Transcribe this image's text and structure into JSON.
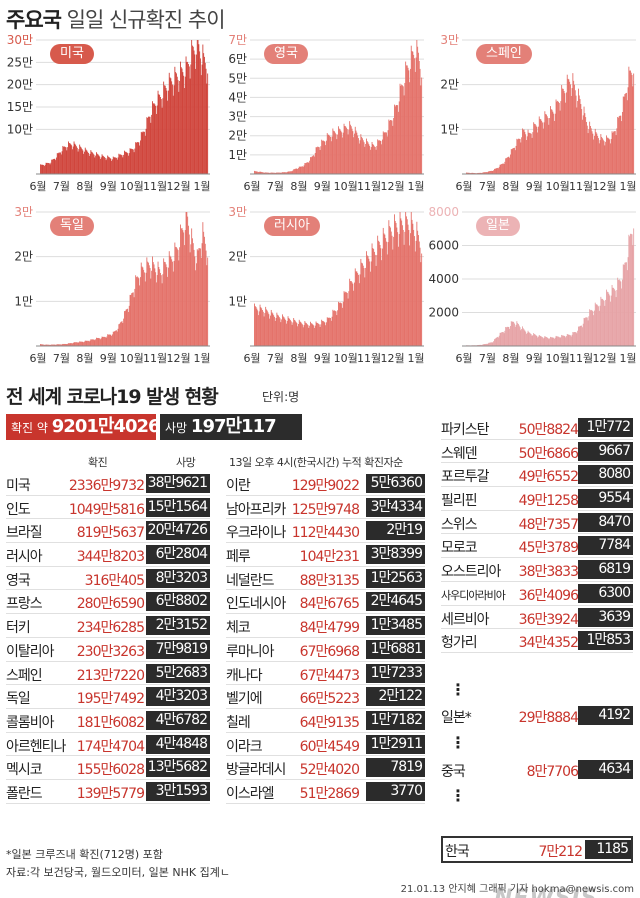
{
  "header": {
    "title_bold": "주요국",
    "title_rest": "일일 신규확진 추이"
  },
  "charts": [
    {
      "name": "미국",
      "color": "#d0453c",
      "label_bg": "#d75a4c",
      "ymax": 300000,
      "ticks": [
        [
          "30만",
          300000
        ],
        [
          "25만",
          250000
        ],
        [
          "20만",
          200000
        ],
        [
          "15만",
          150000
        ],
        [
          "10만",
          100000
        ]
      ],
      "months": [
        "6월",
        "7월",
        "8월",
        "9월",
        "10월",
        "11월",
        "12월",
        "1월"
      ],
      "series": [
        20000,
        23000,
        28000,
        40000,
        55000,
        66000,
        70000,
        64000,
        58000,
        52000,
        48000,
        44000,
        40000,
        38000,
        36000,
        42000,
        48000,
        52000,
        62000,
        80000,
        105000,
        140000,
        165000,
        180000,
        200000,
        215000,
        225000,
        235000,
        245000,
        280000,
        300000,
        270000,
        250000
      ]
    },
    {
      "name": "영국",
      "color": "#e4726a",
      "label_bg": "#e38078",
      "ymax": 70000,
      "ticks": [
        [
          "7만",
          70000
        ],
        [
          "6만",
          60000
        ],
        [
          "5만",
          50000
        ],
        [
          "4만",
          40000
        ],
        [
          "3만",
          30000
        ],
        [
          "2만",
          20000
        ],
        [
          "1만",
          10000
        ]
      ],
      "months": [
        "6월",
        "7월",
        "8월",
        "9월",
        "10월",
        "11월",
        "12월",
        "1월"
      ],
      "series": [
        1500,
        1200,
        800,
        700,
        700,
        800,
        1000,
        1500,
        3000,
        4000,
        6000,
        9000,
        14000,
        17000,
        20000,
        22000,
        23000,
        24000,
        26000,
        24000,
        20000,
        18000,
        16000,
        15000,
        18000,
        22000,
        28000,
        35000,
        45000,
        55000,
        62000,
        68000,
        56000
      ]
    },
    {
      "name": "스페인",
      "color": "#e4726a",
      "label_bg": "#e38078",
      "ymax": 30000,
      "ticks": [
        [
          "3만",
          30000
        ],
        [
          "2만",
          20000
        ],
        [
          "1만",
          10000
        ]
      ],
      "months": [
        "6월",
        "7월",
        "8월",
        "9월",
        "10월",
        "11월",
        "12월",
        "1월"
      ],
      "series": [
        300,
        250,
        200,
        300,
        500,
        800,
        1500,
        2500,
        4000,
        6000,
        8000,
        10000,
        9000,
        11000,
        12000,
        13000,
        14000,
        15000,
        18000,
        20000,
        22000,
        19000,
        16000,
        12000,
        10000,
        9000,
        8000,
        8000,
        9000,
        12000,
        16000,
        22000,
        25000
      ]
    },
    {
      "name": "독일",
      "color": "#e4726a",
      "label_bg": "#e38078",
      "ymax": 30000,
      "ticks": [
        [
          "3만",
          30000
        ],
        [
          "2만",
          20000
        ],
        [
          "1만",
          10000
        ]
      ],
      "months": [
        "6월",
        "7월",
        "8월",
        "9월",
        "10월",
        "11월",
        "12월",
        "1월"
      ],
      "series": [
        400,
        300,
        300,
        350,
        400,
        500,
        700,
        900,
        1000,
        1200,
        1500,
        1800,
        2000,
        2500,
        3000,
        4500,
        7000,
        10000,
        14000,
        17000,
        18000,
        19000,
        18000,
        17000,
        19000,
        20000,
        22000,
        26000,
        30000,
        24000,
        20000,
        26000,
        22000
      ]
    },
    {
      "name": "러시아",
      "color": "#e4726a",
      "label_bg": "#e38078",
      "ymax": 30000,
      "ticks": [
        [
          "3만",
          30000
        ],
        [
          "2만",
          20000
        ],
        [
          "1만",
          10000
        ]
      ],
      "months": [
        "6월",
        "7월",
        "8월",
        "9월",
        "10월",
        "11월",
        "12월",
        "1월"
      ],
      "series": [
        8800,
        8600,
        8200,
        7600,
        7000,
        6700,
        6300,
        6000,
        5600,
        5300,
        5100,
        5000,
        5100,
        5500,
        6000,
        7500,
        9000,
        11000,
        13500,
        15500,
        17500,
        19000,
        20500,
        22000,
        23500,
        25000,
        26500,
        27500,
        28000,
        28500,
        28000,
        26000,
        23000
      ]
    },
    {
      "name": "일본",
      "color": "#e6a3a6",
      "label_bg": "#ecb3b5",
      "ymax": 8000,
      "ticks": [
        [
          "8000",
          8000
        ],
        [
          "6000",
          6000
        ],
        [
          "4000",
          4000
        ],
        [
          "2000",
          2000
        ]
      ],
      "months": [
        "6월",
        "7월",
        "8월",
        "9월",
        "10월",
        "11월",
        "12월",
        "1월"
      ],
      "series": [
        40,
        40,
        50,
        80,
        150,
        250,
        600,
        900,
        1200,
        1500,
        1300,
        1000,
        800,
        700,
        600,
        550,
        500,
        550,
        600,
        650,
        700,
        900,
        1300,
        1800,
        2200,
        2500,
        2800,
        3200,
        3400,
        3800,
        4500,
        6000,
        7800
      ]
    }
  ],
  "world": {
    "section_title": "전 세계 코로나19 발생 현황",
    "unit": "단위:명",
    "confirmed_label": "확진 약",
    "confirmed_value": "9201만4026",
    "deaths_label": "사망",
    "deaths_value": "197만117",
    "col_confirmed": "확진",
    "col_deaths": "사망",
    "subtitle": "13일 오후 4시(한국시간) 누적 확진자순"
  },
  "table_left": [
    {
      "name": "미국",
      "confirmed": "2336만9732",
      "deaths": "38만9621"
    },
    {
      "name": "인도",
      "confirmed": "1049만5816",
      "deaths": "15만1564"
    },
    {
      "name": "브라질",
      "confirmed": "819만5637",
      "deaths": "20만4726"
    },
    {
      "name": "러시아",
      "confirmed": "344만8203",
      "deaths": "6만2804"
    },
    {
      "name": "영국",
      "confirmed": "316만405",
      "deaths": "8만3203"
    },
    {
      "name": "프랑스",
      "confirmed": "280만6590",
      "deaths": "6만8802"
    },
    {
      "name": "터키",
      "confirmed": "234만6285",
      "deaths": "2만3152"
    },
    {
      "name": "이탈리아",
      "confirmed": "230만3263",
      "deaths": "7만9819"
    },
    {
      "name": "스페인",
      "confirmed": "213만7220",
      "deaths": "5만2683"
    },
    {
      "name": "독일",
      "confirmed": "195만7492",
      "deaths": "4만3203"
    },
    {
      "name": "콜롬비아",
      "confirmed": "181만6082",
      "deaths": "4만6782"
    },
    {
      "name": "아르헨티나",
      "confirmed": "174만4704",
      "deaths": "4만4848"
    },
    {
      "name": "멕시코",
      "confirmed": "155만6028",
      "deaths": "13만5682"
    },
    {
      "name": "폴란드",
      "confirmed": "139만5779",
      "deaths": "3만1593"
    }
  ],
  "table_mid": [
    {
      "name": "이란",
      "confirmed": "129만9022",
      "deaths": "5만6360"
    },
    {
      "name": "남아프리카",
      "confirmed": "125만9748",
      "deaths": "3만4334"
    },
    {
      "name": "우크라이나",
      "confirmed": "112만4430",
      "deaths": "2만19"
    },
    {
      "name": "페루",
      "confirmed": "104만231",
      "deaths": "3만8399"
    },
    {
      "name": "네덜란드",
      "confirmed": "88만3135",
      "deaths": "1만2563"
    },
    {
      "name": "인도네시아",
      "confirmed": "84만6765",
      "deaths": "2만4645"
    },
    {
      "name": "체코",
      "confirmed": "84만4799",
      "deaths": "1만3485"
    },
    {
      "name": "루마니아",
      "confirmed": "67만6968",
      "deaths": "1만6881"
    },
    {
      "name": "캐나다",
      "confirmed": "67만4473",
      "deaths": "1만7233"
    },
    {
      "name": "벨기에",
      "confirmed": "66만5223",
      "deaths": "2만122"
    },
    {
      "name": "칠레",
      "confirmed": "64만9135",
      "deaths": "1만7182"
    },
    {
      "name": "이라크",
      "confirmed": "60만4549",
      "deaths": "1만2911"
    },
    {
      "name": "방글라데시",
      "confirmed": "52만4020",
      "deaths": "7819"
    },
    {
      "name": "이스라엘",
      "confirmed": "51만2869",
      "deaths": "3770"
    }
  ],
  "table_right": [
    {
      "name": "파키스탄",
      "confirmed": "50만8824",
      "deaths": "1만772"
    },
    {
      "name": "스웨덴",
      "confirmed": "50만6866",
      "deaths": "9667"
    },
    {
      "name": "포르투갈",
      "confirmed": "49만6552",
      "deaths": "8080"
    },
    {
      "name": "필리핀",
      "confirmed": "49만1258",
      "deaths": "9554"
    },
    {
      "name": "스위스",
      "confirmed": "48만7357",
      "deaths": "8470"
    },
    {
      "name": "모로코",
      "confirmed": "45만3789",
      "deaths": "7784"
    },
    {
      "name": "오스트리아",
      "confirmed": "38만3833",
      "deaths": "6819"
    },
    {
      "name": "사우디아라비아",
      "confirmed": "36만4096",
      "deaths": "6300"
    },
    {
      "name": "세르비아",
      "confirmed": "36만3924",
      "deaths": "3639"
    },
    {
      "name": "헝가리",
      "confirmed": "34만4352",
      "deaths": "1만853"
    }
  ],
  "table_extra": [
    {
      "name": "일본*",
      "confirmed": "29만8884",
      "deaths": "4192"
    },
    {
      "name": "중국",
      "confirmed": "8만7706",
      "deaths": "4634"
    },
    {
      "name": "한국",
      "confirmed": "7만212",
      "deaths": "1185"
    }
  ],
  "footer": {
    "note": "*일본 크루즈내 확진(712명) 포함",
    "source": "자료:각 보건당국, 월드오미터, 일본 NHK 집계ㄴ",
    "logo": "NEWSIS",
    "credit": "21.01.13 안지혜 그래픽 기자 hokma@newsis.com"
  }
}
